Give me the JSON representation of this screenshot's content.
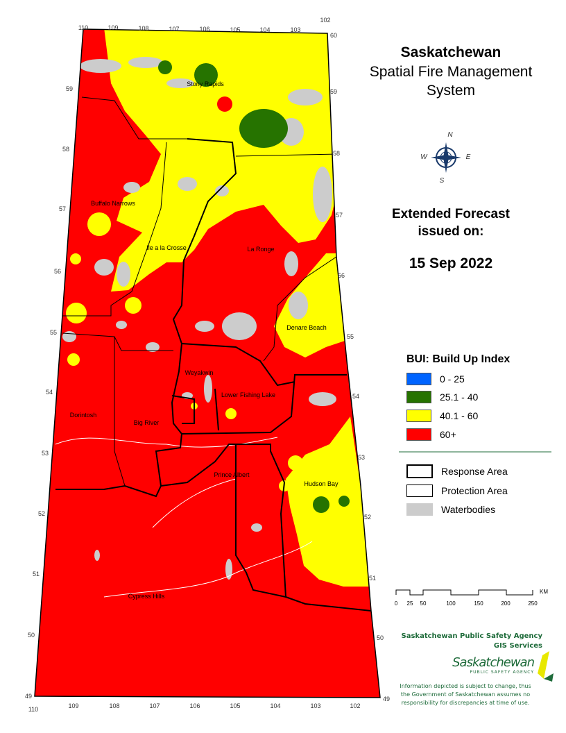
{
  "title": {
    "line1": "Saskatchewan",
    "line2": "Spatial Fire Management",
    "line3": "System"
  },
  "forecast": {
    "line1": "Extended Forecast",
    "line2": "issued on:",
    "date": "15 Sep 2022"
  },
  "legend": {
    "title": "BUI: Build Up Index",
    "classes": [
      {
        "label": "0 - 25",
        "color": "#0064ff"
      },
      {
        "label": "25.1 - 40",
        "color": "#267300"
      },
      {
        "label": "40.1 - 60",
        "color": "#ffff00"
      },
      {
        "label": "60+",
        "color": "#ff0000"
      }
    ],
    "layers": [
      {
        "label": "Response Area"
      },
      {
        "label": "Protection Area"
      },
      {
        "label": "Waterbodies",
        "color": "#cccccc"
      }
    ]
  },
  "scalebar": {
    "ticks": [
      "0",
      "25",
      "50",
      "100",
      "150",
      "200",
      "250"
    ],
    "unit": "KM"
  },
  "compass": {
    "n": "N",
    "e": "E",
    "s": "S",
    "w": "W"
  },
  "credits": {
    "agency": "Saskatchewan Public Safety Agency",
    "dept": "GIS  Services",
    "logo_text": "Saskatchewan",
    "logo_sub": "PUBLIC SAFETY AGENCY",
    "disclaimer": [
      "Information depicted is subject to change, thus",
      "the Government of Saskatchewan assumes no",
      "responsibility for discrepancies at time of use."
    ]
  },
  "places": [
    "Stony Rapids",
    "Buffalo Narrows",
    "Ile a la Crosse",
    "La Ronge",
    "Denare Beach",
    "Weyakwin",
    "Lower Fishing Lake",
    "Dorintosh",
    "Big River",
    "Prince Albert",
    "Hudson Bay",
    "Cypress Hills"
  ],
  "longitudes_top": [
    "110",
    "109",
    "108",
    "107",
    "106",
    "105",
    "104",
    "103",
    "102"
  ],
  "longitudes_bottom": [
    "110",
    "109",
    "108",
    "107",
    "106",
    "105",
    "104",
    "103",
    "102"
  ],
  "latitudes": [
    "60",
    "59",
    "58",
    "57",
    "56",
    "55",
    "54",
    "53",
    "52",
    "51",
    "50",
    "49"
  ]
}
